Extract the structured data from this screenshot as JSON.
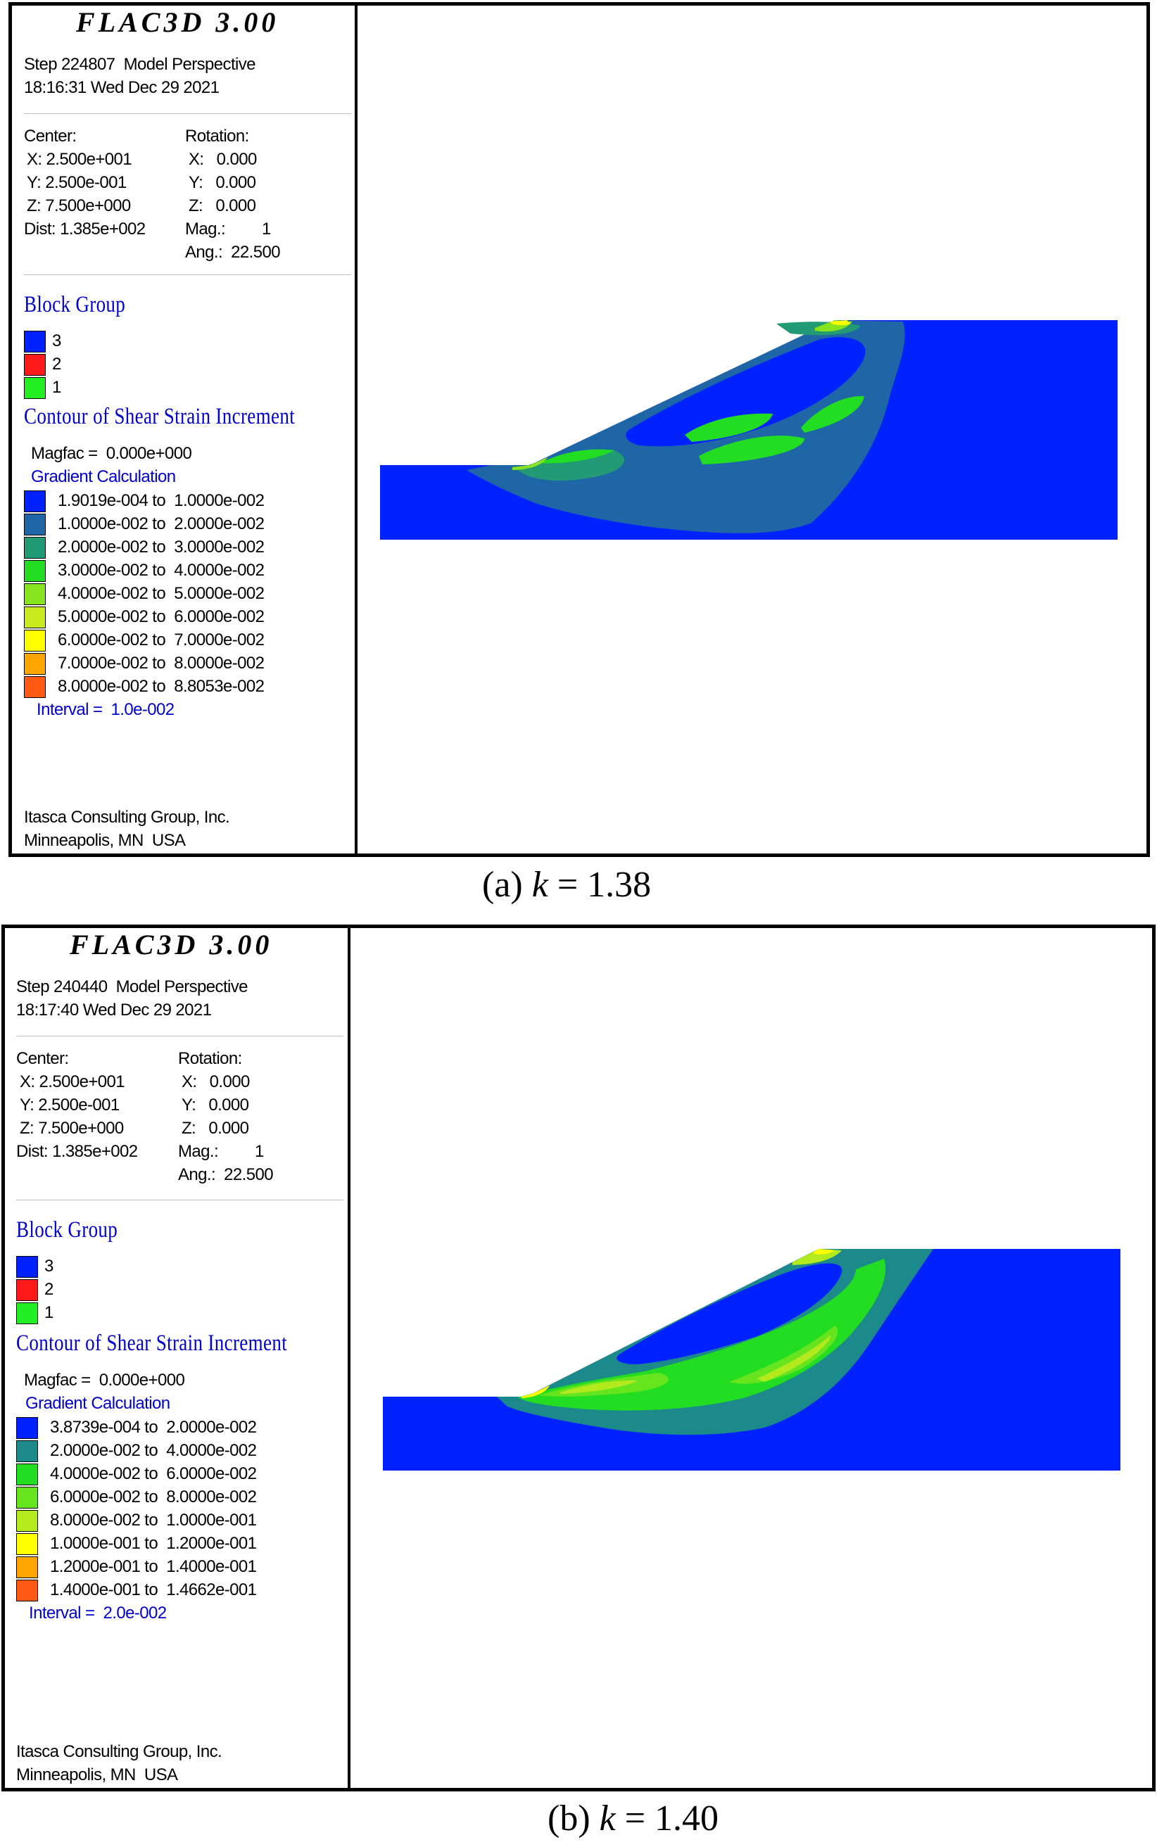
{
  "panels": [
    {
      "program_title": "FLAC3D 3.00",
      "step_line": "Step 224807  Model Perspective",
      "date_line": "18:16:31 Wed Dec 29 2021",
      "center": {
        "label": "Center:",
        "x": "X: 2.500e+001",
        "y": "Y: 2.500e-001",
        "z": "Z: 7.500e+000",
        "dist": "Dist: 1.385e+002"
      },
      "rotation": {
        "label": "Rotation:",
        "x": "X:   0.000",
        "y": "Y:   0.000",
        "z": "Z:   0.000",
        "mag": "Mag.:",
        "mag_value": "1",
        "ang": "Ang.:  22.500"
      },
      "block_group": {
        "title": "Block Group",
        "items": [
          {
            "label": "3",
            "color": "#0022ff"
          },
          {
            "label": "2",
            "color": "#ff1a1a"
          },
          {
            "label": "1",
            "color": "#22ee22"
          }
        ]
      },
      "contour": {
        "title": "Contour of Shear Strain Increment",
        "magfac": "Magfac =  0.000e+000",
        "gradient": "Gradient Calculation",
        "ranges": [
          {
            "label": "1.9019e-004 to  1.0000e-002",
            "color": "#0022ff"
          },
          {
            "label": "1.0000e-002 to  2.0000e-002",
            "color": "#1f66a6"
          },
          {
            "label": "2.0000e-002 to  3.0000e-002",
            "color": "#229a74"
          },
          {
            "label": "3.0000e-002 to  4.0000e-002",
            "color": "#22dd22"
          },
          {
            "label": "4.0000e-002 to  5.0000e-002",
            "color": "#88e31f"
          },
          {
            "label": "5.0000e-002 to  6.0000e-002",
            "color": "#c8ea1e"
          },
          {
            "label": "6.0000e-002 to  7.0000e-002",
            "color": "#ffff00"
          },
          {
            "label": "7.0000e-002 to  8.0000e-002",
            "color": "#ffa500"
          },
          {
            "label": "8.0000e-002 to  8.8053e-002",
            "color": "#ff5a14"
          }
        ],
        "interval": "Interval =  1.0e-002"
      },
      "company": "Itasca Consulting Group, Inc.",
      "location": "Minneapolis, MN  USA",
      "caption_prefix": "(a) ",
      "caption_k": "k",
      "caption_value": " = 1.38"
    },
    {
      "program_title": "FLAC3D 3.00",
      "step_line": "Step 240440  Model Perspective",
      "date_line": "18:17:40 Wed Dec 29 2021",
      "center": {
        "label": "Center:",
        "x": "X: 2.500e+001",
        "y": "Y: 2.500e-001",
        "z": "Z: 7.500e+000",
        "dist": "Dist: 1.385e+002"
      },
      "rotation": {
        "label": "Rotation:",
        "x": "X:   0.000",
        "y": "Y:   0.000",
        "z": "Z:   0.000",
        "mag": "Mag.:",
        "mag_value": "1",
        "ang": "Ang.:  22.500"
      },
      "block_group": {
        "title": "Block Group",
        "items": [
          {
            "label": "3",
            "color": "#0022ff"
          },
          {
            "label": "2",
            "color": "#ff1a1a"
          },
          {
            "label": "1",
            "color": "#22ee22"
          }
        ]
      },
      "contour": {
        "title": "Contour of Shear Strain Increment",
        "magfac": "Magfac =  0.000e+000",
        "gradient": "Gradient Calculation",
        "ranges": [
          {
            "label": "3.8739e-004 to  2.0000e-002",
            "color": "#0022ff"
          },
          {
            "label": "2.0000e-002 to  4.0000e-002",
            "color": "#1c8a8a"
          },
          {
            "label": "4.0000e-002 to  6.0000e-002",
            "color": "#22dd22"
          },
          {
            "label": "6.0000e-002 to  8.0000e-002",
            "color": "#66e41e"
          },
          {
            "label": "8.0000e-002 to  1.0000e-001",
            "color": "#b2ea1e"
          },
          {
            "label": "1.0000e-001 to  1.2000e-001",
            "color": "#ffff00"
          },
          {
            "label": "1.2000e-001 to  1.4000e-001",
            "color": "#ffa500"
          },
          {
            "label": "1.4000e-001 to  1.4662e-001",
            "color": "#ff5a14"
          }
        ],
        "interval": "Interval =  2.0e-002"
      },
      "company": "Itasca Consulting Group, Inc.",
      "location": "Minneapolis, MN  USA",
      "caption_prefix": "(b) ",
      "caption_k": "k",
      "caption_value": " = 1.40"
    }
  ]
}
